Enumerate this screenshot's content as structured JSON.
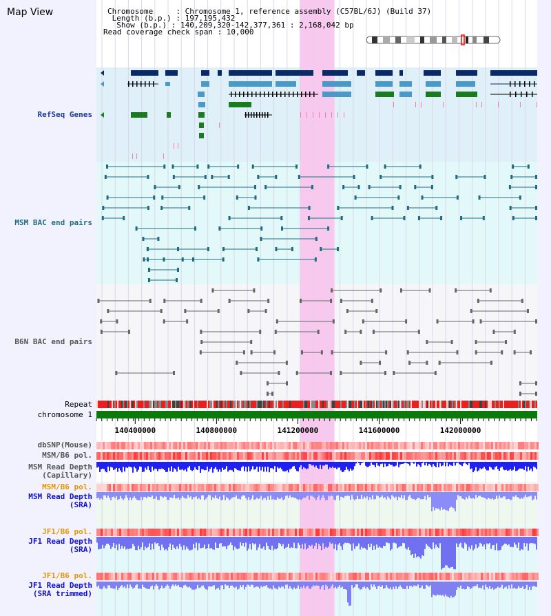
{
  "title": "Map View",
  "info": {
    "chromosome_line": "Chromosome     : Chromosome 1, reference assembly (C57BL/6J) (Build 37)",
    "length_line": " Length (b.p.) : 197,195,432",
    "show_line": "  Show (b.p.) : 140,209,320-142,377,361 : 2,168,042 bp",
    "coverage_line": "Read coverage check span : 10,000"
  },
  "tracks": {
    "refseq": {
      "label": "RefSeq Genes",
      "color": "#1a3a99"
    },
    "msm_bac": {
      "label": "MSM BAC end pairs",
      "color": "#1f6b80"
    },
    "b6n_bac": {
      "label": "B6N BAC end pairs",
      "color": "#555555"
    },
    "repeat": {
      "label": "Repeat",
      "color": "#000000"
    },
    "chromosome": {
      "label": "chromosome 1",
      "color": "#000000"
    },
    "dbsnp": {
      "label": "dbSNP(Mouse)",
      "color": "#555555"
    },
    "msm_b6_pol_cap": {
      "label": "MSM/B6 pol.",
      "color": "#555555"
    },
    "msm_depth_cap": {
      "label_line1": "MSM Read Depth",
      "label_line2": "(Capillary)",
      "color": "#555555"
    },
    "msm_b6_pol_sra": {
      "label": "MSM/B6 pol.",
      "color": "#e69500"
    },
    "msm_depth_sra": {
      "label_line1": "MSM Read Depth",
      "label_line2": "(SRA)",
      "color": "#1010cc"
    },
    "jf1_b6_pol": {
      "label": "JF1/B6 pol.",
      "color": "#e69500"
    },
    "jf1_depth_sra": {
      "label_line1": "JF1 Read Depth",
      "label_line2": "(SRA)",
      "color": "#1010cc"
    },
    "jf1_b6_pol_trim": {
      "label": "JF1/B6 pol.",
      "color": "#e69500"
    },
    "jf1_depth_trim": {
      "label_line1": "JF1 Read Depth",
      "label_line2": "(SRA trimmed)",
      "color": "#1010cc"
    }
  },
  "axis": {
    "ticks": [
      "140400000",
      "140800000",
      "141200000",
      "141600000",
      "142000000"
    ],
    "tick_values": [
      140400000,
      140800000,
      141200000,
      141600000,
      142000000
    ],
    "range": [
      140209320,
      142377361
    ]
  },
  "highlight": {
    "start": 141209000,
    "end": 141380000,
    "color": "#f9c8ee"
  }
}
